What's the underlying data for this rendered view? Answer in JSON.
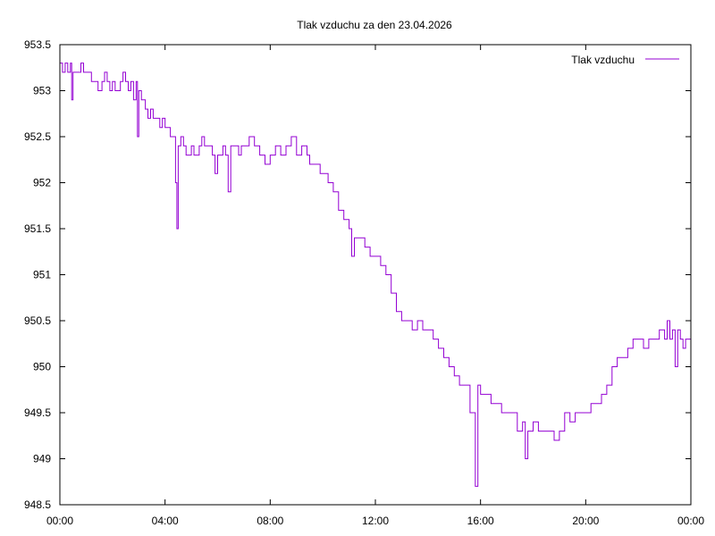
{
  "chart_data": {
    "type": "line",
    "title": "Tlak vzduchu za den 23.04.2026",
    "xlabel": "",
    "ylabel": "",
    "x_unit": "hours",
    "xlim": [
      0,
      24
    ],
    "ylim": [
      948.5,
      953.5
    ],
    "y_ticks": [
      "953.5",
      "953",
      "952.5",
      "952",
      "951.5",
      "951",
      "950.5",
      "950",
      "949.5",
      "949",
      "948.5"
    ],
    "x_ticks": [
      "00:00",
      "04:00",
      "08:00",
      "12:00",
      "16:00",
      "20:00",
      "00:00"
    ],
    "grid": false,
    "legend_position": "top-right",
    "series": [
      {
        "name": "Tlak vzduchu",
        "color": "#9400d3",
        "points": [
          [
            0.0,
            953.3
          ],
          [
            0.1,
            953.2
          ],
          [
            0.2,
            953.3
          ],
          [
            0.3,
            953.2
          ],
          [
            0.4,
            953.3
          ],
          [
            0.45,
            952.9
          ],
          [
            0.5,
            953.2
          ],
          [
            0.7,
            953.2
          ],
          [
            0.8,
            953.3
          ],
          [
            0.9,
            953.2
          ],
          [
            1.1,
            953.2
          ],
          [
            1.2,
            953.1
          ],
          [
            1.35,
            953.1
          ],
          [
            1.45,
            953.0
          ],
          [
            1.6,
            953.1
          ],
          [
            1.7,
            953.2
          ],
          [
            1.8,
            953.1
          ],
          [
            1.9,
            953.0
          ],
          [
            2.0,
            953.1
          ],
          [
            2.1,
            953.0
          ],
          [
            2.3,
            953.1
          ],
          [
            2.4,
            953.2
          ],
          [
            2.5,
            953.1
          ],
          [
            2.6,
            953.0
          ],
          [
            2.7,
            953.1
          ],
          [
            2.8,
            952.9
          ],
          [
            2.9,
            953.1
          ],
          [
            2.95,
            952.5
          ],
          [
            3.0,
            953.0
          ],
          [
            3.1,
            952.9
          ],
          [
            3.25,
            952.8
          ],
          [
            3.35,
            952.7
          ],
          [
            3.45,
            952.8
          ],
          [
            3.55,
            952.7
          ],
          [
            3.7,
            952.7
          ],
          [
            3.8,
            952.6
          ],
          [
            3.9,
            952.7
          ],
          [
            4.0,
            952.6
          ],
          [
            4.1,
            952.6
          ],
          [
            4.2,
            952.5
          ],
          [
            4.3,
            952.5
          ],
          [
            4.4,
            952.0
          ],
          [
            4.45,
            951.5
          ],
          [
            4.5,
            952.4
          ],
          [
            4.6,
            952.5
          ],
          [
            4.7,
            952.4
          ],
          [
            4.8,
            952.3
          ],
          [
            4.9,
            952.3
          ],
          [
            5.0,
            952.4
          ],
          [
            5.1,
            952.3
          ],
          [
            5.3,
            952.4
          ],
          [
            5.4,
            952.5
          ],
          [
            5.5,
            952.4
          ],
          [
            5.7,
            952.4
          ],
          [
            5.8,
            952.3
          ],
          [
            5.9,
            952.1
          ],
          [
            6.0,
            952.3
          ],
          [
            6.2,
            952.4
          ],
          [
            6.3,
            952.3
          ],
          [
            6.4,
            951.9
          ],
          [
            6.5,
            952.4
          ],
          [
            6.6,
            952.4
          ],
          [
            6.8,
            952.3
          ],
          [
            6.9,
            952.4
          ],
          [
            7.0,
            952.4
          ],
          [
            7.2,
            952.5
          ],
          [
            7.4,
            952.4
          ],
          [
            7.6,
            952.3
          ],
          [
            7.8,
            952.2
          ],
          [
            8.0,
            952.3
          ],
          [
            8.2,
            952.4
          ],
          [
            8.4,
            952.3
          ],
          [
            8.6,
            952.4
          ],
          [
            8.8,
            952.5
          ],
          [
            9.0,
            952.3
          ],
          [
            9.2,
            952.4
          ],
          [
            9.4,
            952.3
          ],
          [
            9.5,
            952.2
          ],
          [
            9.7,
            952.2
          ],
          [
            9.9,
            952.1
          ],
          [
            10.0,
            952.1
          ],
          [
            10.2,
            952.0
          ],
          [
            10.4,
            951.9
          ],
          [
            10.6,
            951.7
          ],
          [
            10.8,
            951.6
          ],
          [
            11.0,
            951.5
          ],
          [
            11.1,
            951.2
          ],
          [
            11.2,
            951.4
          ],
          [
            11.4,
            951.4
          ],
          [
            11.6,
            951.3
          ],
          [
            11.8,
            951.2
          ],
          [
            12.0,
            951.2
          ],
          [
            12.2,
            951.1
          ],
          [
            12.4,
            951.0
          ],
          [
            12.6,
            950.8
          ],
          [
            12.8,
            950.6
          ],
          [
            13.0,
            950.5
          ],
          [
            13.2,
            950.5
          ],
          [
            13.4,
            950.4
          ],
          [
            13.6,
            950.5
          ],
          [
            13.8,
            950.4
          ],
          [
            14.0,
            950.4
          ],
          [
            14.2,
            950.3
          ],
          [
            14.4,
            950.2
          ],
          [
            14.6,
            950.1
          ],
          [
            14.8,
            950.0
          ],
          [
            15.0,
            949.9
          ],
          [
            15.2,
            949.8
          ],
          [
            15.4,
            949.8
          ],
          [
            15.6,
            949.5
          ],
          [
            15.8,
            948.7
          ],
          [
            15.9,
            949.8
          ],
          [
            16.0,
            949.7
          ],
          [
            16.2,
            949.7
          ],
          [
            16.4,
            949.6
          ],
          [
            16.6,
            949.6
          ],
          [
            16.8,
            949.5
          ],
          [
            17.0,
            949.5
          ],
          [
            17.2,
            949.5
          ],
          [
            17.4,
            949.3
          ],
          [
            17.6,
            949.4
          ],
          [
            17.7,
            949.0
          ],
          [
            17.8,
            949.3
          ],
          [
            18.0,
            949.4
          ],
          [
            18.2,
            949.3
          ],
          [
            18.4,
            949.3
          ],
          [
            18.6,
            949.3
          ],
          [
            18.8,
            949.2
          ],
          [
            19.0,
            949.3
          ],
          [
            19.2,
            949.5
          ],
          [
            19.4,
            949.4
          ],
          [
            19.6,
            949.5
          ],
          [
            19.8,
            949.5
          ],
          [
            20.0,
            949.5
          ],
          [
            20.2,
            949.6
          ],
          [
            20.4,
            949.6
          ],
          [
            20.6,
            949.7
          ],
          [
            20.8,
            949.8
          ],
          [
            21.0,
            950.0
          ],
          [
            21.2,
            950.1
          ],
          [
            21.4,
            950.1
          ],
          [
            21.6,
            950.2
          ],
          [
            21.8,
            950.3
          ],
          [
            22.0,
            950.3
          ],
          [
            22.2,
            950.2
          ],
          [
            22.4,
            950.3
          ],
          [
            22.6,
            950.3
          ],
          [
            22.8,
            950.4
          ],
          [
            23.0,
            950.3
          ],
          [
            23.1,
            950.5
          ],
          [
            23.2,
            950.3
          ],
          [
            23.3,
            950.4
          ],
          [
            23.4,
            950.0
          ],
          [
            23.5,
            950.4
          ],
          [
            23.6,
            950.3
          ],
          [
            23.7,
            950.2
          ],
          [
            23.8,
            950.3
          ],
          [
            24.0,
            950.3
          ]
        ]
      }
    ]
  }
}
